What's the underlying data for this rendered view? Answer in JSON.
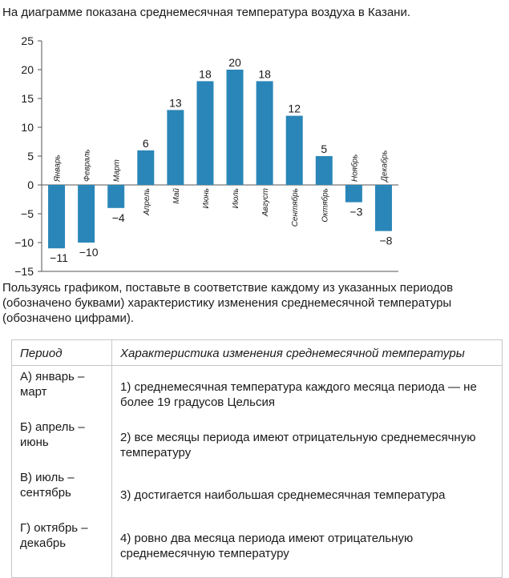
{
  "intro": "На диаграмме показана среднемесячная температура воздуха в Казани.",
  "chart_data": {
    "type": "bar",
    "categories": [
      "Январь",
      "Февраль",
      "Март",
      "Апрель",
      "Май",
      "Июнь",
      "Июль",
      "Август",
      "Сентябрь",
      "Октябрь",
      "Ноябрь",
      "Декабрь"
    ],
    "values": [
      -11,
      -10,
      -4,
      6,
      13,
      18,
      20,
      18,
      12,
      5,
      -3,
      -8
    ],
    "value_labels": [
      "−11",
      "−10",
      "−4",
      "6",
      "13",
      "18",
      "20",
      "18",
      "12",
      "5",
      "−3",
      "−8"
    ],
    "y_ticks": [
      25,
      20,
      15,
      10,
      5,
      0,
      -5,
      -10,
      -15
    ],
    "y_tick_labels": [
      "25",
      "20",
      "15",
      "10",
      "5",
      "0",
      "−5",
      "−10",
      "−15"
    ],
    "ylim": [
      -15,
      25
    ],
    "bar_color": "#2a86b8",
    "grid": false,
    "title": "",
    "xlabel": "",
    "ylabel": ""
  },
  "question": "Пользуясь графиком, поставьте в соответствие каждому из указанных периодов (обозначено буквами) характеристику изменения среднемесячной температуры (обозначено цифрами).",
  "table": {
    "header_period": "Период",
    "header_characteristic": "Характеристика изменения среднемесячной температуры",
    "periods": [
      "А) январь – март",
      "Б) апрель – июнь",
      "В) июль – сентябрь",
      "Г) октябрь – декабрь"
    ],
    "characteristics": [
      "1) среднемесячная температура каждого месяца периода — не более 19 градусов Цельсия",
      "2) все месяцы периода имеют отрицательную среднемесячную температуру",
      "3) достигается наибольшая среднемесячная температура",
      "4) ровно два месяца периода имеют отрицательную среднемесячную температуру"
    ]
  }
}
